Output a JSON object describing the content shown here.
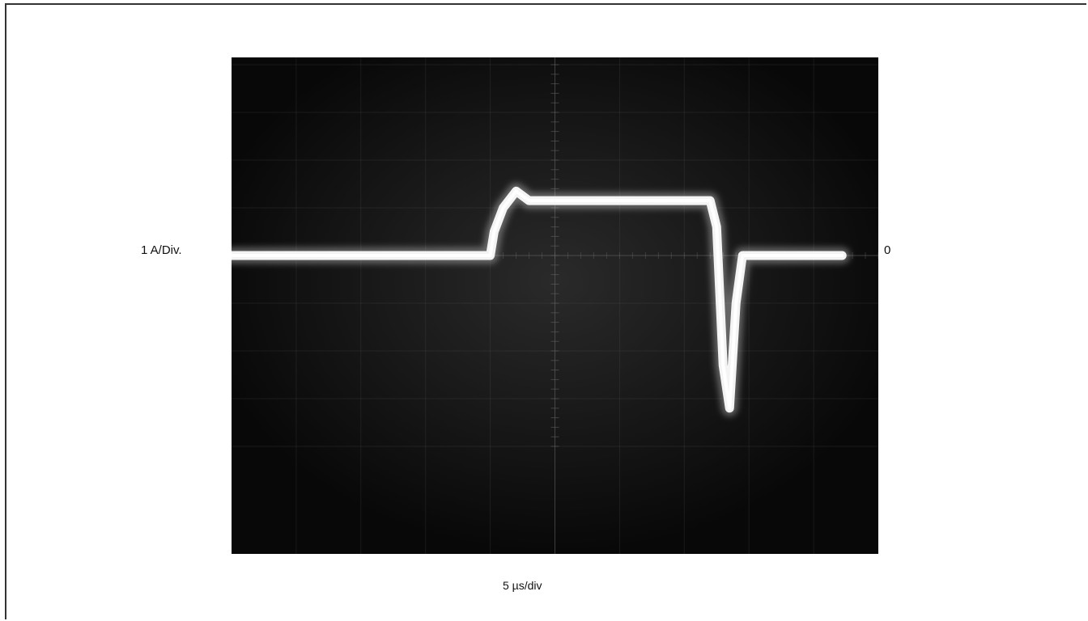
{
  "chart_data": {
    "type": "line",
    "title": "",
    "ylabel": "1 A/Div.",
    "xlabel": "5 µs/div",
    "zero_marker": "0",
    "grid": true,
    "xlim": [
      0,
      50
    ],
    "ylim": [
      -4,
      4
    ],
    "series": [
      {
        "x": [
          0,
          20.0,
          20.3,
          21.0,
          22.0,
          23.0,
          29.0,
          37.0,
          37.5,
          38.0,
          38.5,
          39.0,
          39.5,
          40.0,
          41.5,
          42.0,
          47.2
        ],
        "y": [
          0,
          0,
          0.5,
          1.0,
          1.35,
          1.15,
          1.15,
          1.15,
          0.6,
          -2.3,
          -3.2,
          -1.0,
          0,
          0,
          0,
          0,
          0
        ]
      }
    ]
  },
  "colors": {
    "screen_background": "#0c0c0c",
    "trace": "#f4f4f4",
    "graticule": "#6a6a6a"
  }
}
